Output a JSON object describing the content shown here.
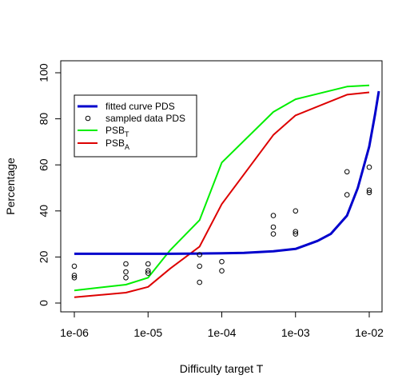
{
  "chart_data": {
    "type": "line",
    "title": "",
    "xlabel": "Difficulty target T",
    "ylabel": "Percentage",
    "xscale": "log",
    "xlim": [
      1e-06,
      0.01
    ],
    "ylim": [
      0,
      100
    ],
    "grid": false,
    "legend_position": "top-left",
    "x_ticks": [
      {
        "value": 1e-06,
        "label": "1e-06"
      },
      {
        "value": 1e-05,
        "label": "1e-05"
      },
      {
        "value": 0.0001,
        "label": "1e-04"
      },
      {
        "value": 0.001,
        "label": "1e-03"
      },
      {
        "value": 0.01,
        "label": "1e-02"
      }
    ],
    "y_ticks": [
      0,
      20,
      40,
      60,
      80,
      100
    ],
    "legend": [
      {
        "label": "fitted curve PDS",
        "sub": "",
        "kind": "line",
        "color": "#0000cc",
        "width": 3
      },
      {
        "label": "sampled data PDS",
        "sub": "",
        "kind": "point",
        "color": "#000000"
      },
      {
        "label": "PSB",
        "sub": "T",
        "kind": "line",
        "color": "#00ee00",
        "width": 2
      },
      {
        "label": "PSB",
        "sub": "A",
        "kind": "line",
        "color": "#dd0000",
        "width": 2
      }
    ],
    "series": [
      {
        "name": "fitted curve PDS",
        "kind": "curve",
        "color": "#0000cc",
        "x": [
          1e-06,
          2e-06,
          5e-06,
          1e-05,
          2e-05,
          5e-05,
          0.0001,
          0.0002,
          0.0005,
          0.001,
          0.002,
          0.003,
          0.005,
          0.007,
          0.01,
          0.012,
          0.0135
        ],
        "values": [
          21.4,
          21.4,
          21.4,
          21.4,
          21.4,
          21.5,
          21.6,
          21.8,
          22.5,
          23.5,
          27,
          30,
          38,
          50,
          68,
          82,
          92
        ]
      },
      {
        "name": "sampled data PDS",
        "kind": "points",
        "color": "#000000",
        "x": [
          1e-06,
          1e-06,
          1e-06,
          5e-06,
          5e-06,
          5e-06,
          1e-05,
          1e-05,
          1e-05,
          5e-05,
          5e-05,
          5e-05,
          0.0001,
          0.0001,
          0.0005,
          0.0005,
          0.0005,
          0.001,
          0.001,
          0.001,
          0.005,
          0.005,
          0.01,
          0.01,
          0.01
        ],
        "values": [
          16,
          12,
          11,
          17,
          13.5,
          11,
          17,
          14,
          13,
          21,
          16,
          9,
          18,
          14,
          38,
          33,
          30,
          40,
          31,
          30,
          57,
          47,
          59,
          49,
          48
        ]
      },
      {
        "name": "PSB_T",
        "kind": "line",
        "color": "#00ee00",
        "x": [
          1e-06,
          5e-06,
          1e-05,
          2e-05,
          5e-05,
          0.0001,
          0.0005,
          0.001,
          0.005,
          0.01
        ],
        "values": [
          5.5,
          8,
          11,
          23,
          36,
          61,
          83,
          88.5,
          94,
          94.5
        ]
      },
      {
        "name": "PSB_A",
        "kind": "line",
        "color": "#dd0000",
        "x": [
          1e-06,
          5e-06,
          1e-05,
          2e-05,
          5e-05,
          0.0001,
          0.0005,
          0.001,
          0.005,
          0.01
        ],
        "values": [
          2.5,
          4.5,
          7,
          15,
          24.5,
          43,
          73,
          81.5,
          90.5,
          91.5
        ]
      }
    ]
  }
}
